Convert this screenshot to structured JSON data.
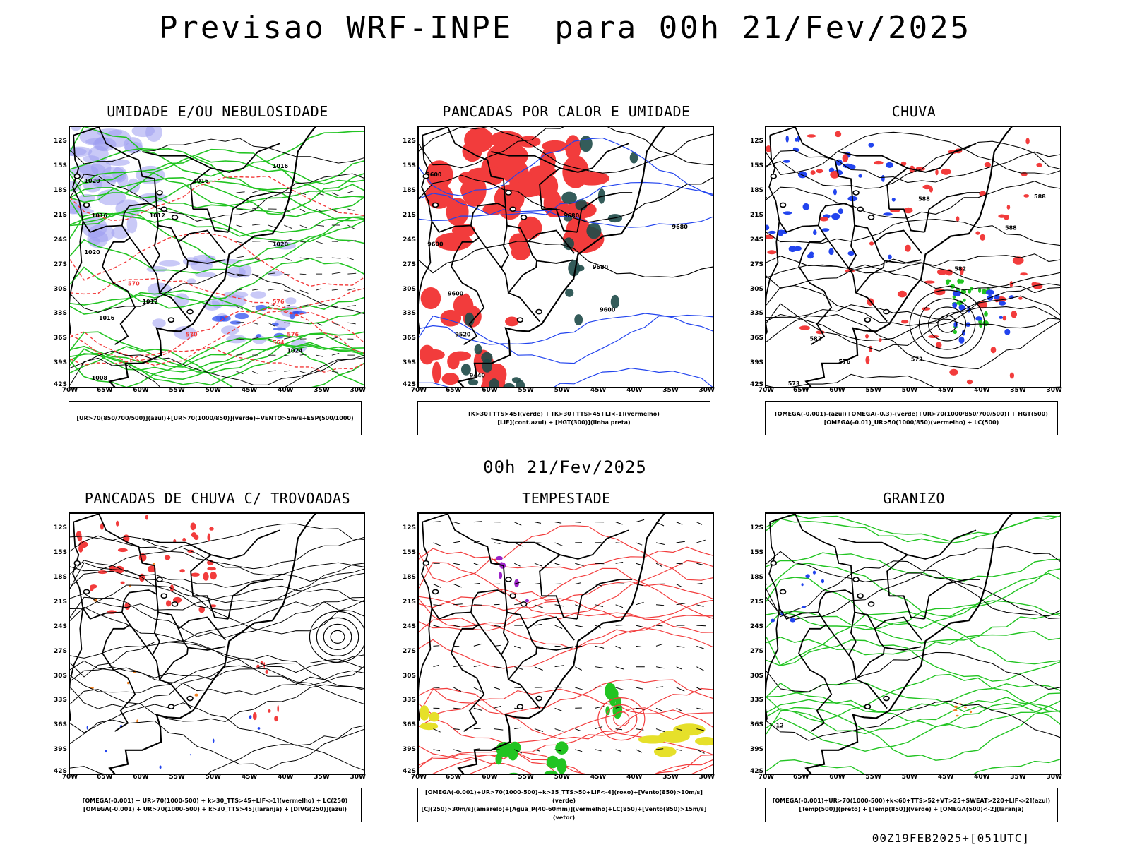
{
  "title": "Previsao WRF-INPE  para 00h 21/Fev/2025",
  "mid_title": "00h 21/Fev/2025",
  "footer": "00Z19FEB2025+[051UTC]",
  "axes": {
    "y_ticks": [
      "12S",
      "15S",
      "18S",
      "21S",
      "24S",
      "27S",
      "30S",
      "33S",
      "36S",
      "39S",
      "42S"
    ],
    "x_ticks": [
      "70W",
      "65W",
      "60W",
      "55W",
      "50W",
      "45W",
      "40W",
      "35W",
      "30W"
    ]
  },
  "colors": {
    "red": "#f23c3c",
    "green": "#22c422",
    "blue": "#2244ee",
    "lavender": "#9c9cf0",
    "darkteal": "#1e4a48",
    "yellow": "#e6e02a",
    "purple": "#9b22c8",
    "orange": "#f08020"
  },
  "panels": [
    {
      "title": "UMIDADE E/OU NEBULOSIDADE",
      "legend": [
        "[UR>70(850/700/500)](azul)+[UR>70(1000/850)](verde)+VENTO>5m/s+ESP(500/1000)"
      ],
      "labels": [
        "1016",
        "1016",
        "1012",
        "1020",
        "1020",
        "1016",
        "1012",
        "1016",
        "1020",
        "1024",
        "1008",
        "576",
        "570",
        "576",
        "570",
        "564"
      ]
    },
    {
      "title": "PANCADAS POR CALOR E UMIDADE",
      "legend": [
        "[K>30+TTS>45](verde) + [K>30+TTS>45+LI<-1](vermelho)",
        "[LIF](cont.azul) + [HGT(300)](linha preta)"
      ],
      "labels": [
        "9600",
        "9600",
        "9680",
        "9680",
        "9680",
        "9600",
        "9600",
        "9520",
        "9440"
      ]
    },
    {
      "title": "CHUVA",
      "legend": [
        "[OMEGA(-0.001)-(azul)+OMEGA(-0.3)-(verde)+UR>70(1000/850/700/500)] + HGT(500)",
        "[OMEGA(-0.01)_UR>50(1000/850)(vermelho) + LC(500)"
      ],
      "labels": [
        "588",
        "588",
        "588",
        "582",
        "582",
        "576",
        "573",
        "573"
      ]
    },
    {
      "title": "PANCADAS DE CHUVA C/ TROVOADAS",
      "legend": [
        "[OMEGA(-0.001) + UR>70(1000-500) + k>30_TTS>45+LIF<-1](vermelho) + LC(250)",
        "[OMEGA(-0.001) + UR>70(1000-500) + k>30_TTS>45](laranja) + [DIVG(250)](azul)"
      ],
      "labels": []
    },
    {
      "title": "TEMPESTADE",
      "legend": [
        "[OMEGA(-0.001)+UR>70(1000-500)+k>35_TTS>50+LIF<-4](roxo)+[Vento(850)>10m/s](verde)",
        "[CJ(250)>30m/s](amarelo)+[Agua_P(40-60mm)](vermelho)+LC(850)+[Vento(850)>15m/s](vetor)"
      ],
      "labels": []
    },
    {
      "title": "GRANIZO",
      "legend": [
        "[OMEGA(-0.001)+UR>70(1000-500)+k<60+TTS>52+VT>25+SWEAT>220+LIF<-2](azul)",
        "[Temp(500)](preto) + [Temp(850)](verde) + [OMEGA(500)<-2](laranja)"
      ],
      "labels": [
        "-12"
      ]
    }
  ]
}
